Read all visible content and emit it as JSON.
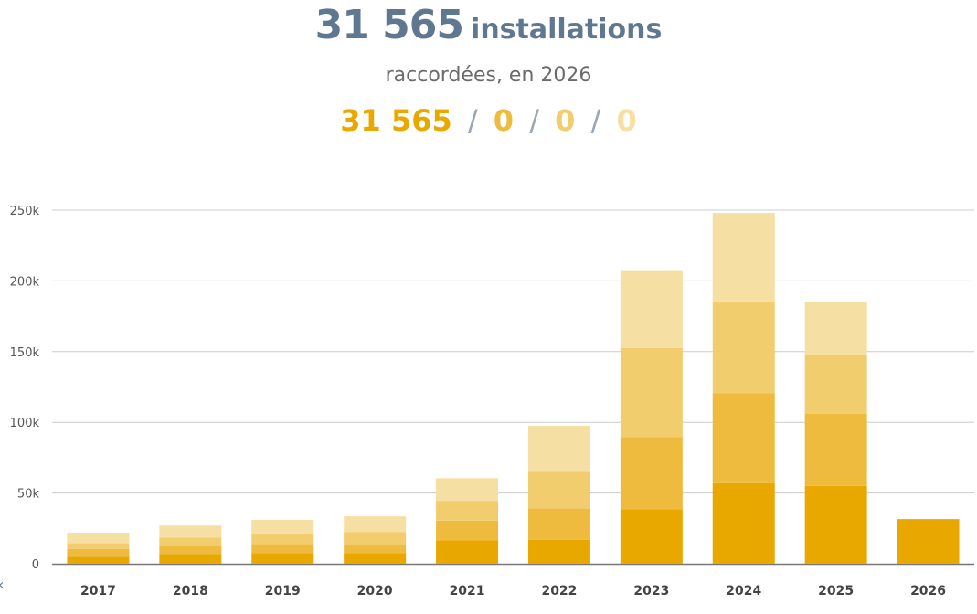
{
  "header": {
    "total": "31 565",
    "unit": "installations",
    "subtitle": "raccordées, en 2026",
    "breakdown": [
      "31 565",
      "0",
      "0",
      "0"
    ],
    "separator": "/"
  },
  "colors": {
    "s1": "#e8a800",
    "s2": "#efbb3e",
    "s3": "#f2cd6e",
    "s4": "#f6dfa2",
    "title": "#5f7890",
    "grid": "#cccccc"
  },
  "chart_data": {
    "type": "bar",
    "stacked": true,
    "categories": [
      "2017",
      "2018",
      "2019",
      "2020",
      "2021",
      "2022",
      "2023",
      "2024",
      "2025",
      "2026"
    ],
    "series": [
      {
        "values": [
          5000,
          7000,
          7500,
          7500,
          16500,
          17000,
          38500,
          57000,
          55000,
          31565
        ]
      },
      {
        "values": [
          5500,
          5500,
          6500,
          6000,
          14000,
          22000,
          51000,
          63500,
          51000,
          0
        ]
      },
      {
        "values": [
          4000,
          6000,
          7500,
          9000,
          14000,
          26000,
          63000,
          65000,
          41500,
          0
        ]
      },
      {
        "values": [
          7500,
          8500,
          9500,
          11000,
          16000,
          32500,
          54500,
          62500,
          37500,
          0
        ]
      }
    ],
    "y_ticks": [
      "0",
      "50k",
      "100k",
      "150k",
      "200k",
      "250k"
    ],
    "ylim": [
      0,
      250000
    ],
    "grid": true,
    "legend": "none"
  }
}
